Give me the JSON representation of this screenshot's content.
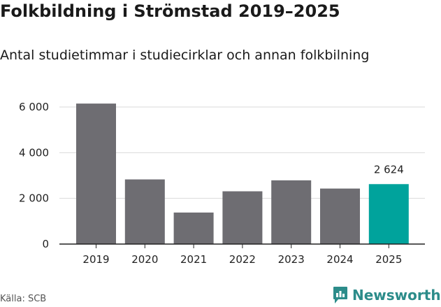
{
  "header": {
    "title": "Folkbildning i Strömstad 2019–2025",
    "subtitle": "Antal studietimmar i studiecirklar och annan folkbilning"
  },
  "footer": {
    "source": "Källa: SCB",
    "brand": "Newsworthy"
  },
  "colors": {
    "bar": "#6e6d72",
    "highlight": "#00a39c",
    "grid": "#d9d9d9",
    "axis": "#222222",
    "brand": "#2c8c8a"
  },
  "chart_data": {
    "type": "bar",
    "categories": [
      "2019",
      "2020",
      "2021",
      "2022",
      "2023",
      "2024",
      "2025"
    ],
    "values": [
      6150,
      2830,
      1380,
      2310,
      2790,
      2430,
      2624
    ],
    "highlight_index": 6,
    "data_labels": [
      {
        "index": 6,
        "text": "2 624"
      }
    ],
    "ylim": [
      0,
      6500
    ],
    "yticks": [
      0,
      2000,
      4000,
      6000
    ],
    "ytick_labels": [
      "0",
      "2 000",
      "4 000",
      "6 000"
    ],
    "grid": true,
    "xlabel": "",
    "ylabel": ""
  }
}
